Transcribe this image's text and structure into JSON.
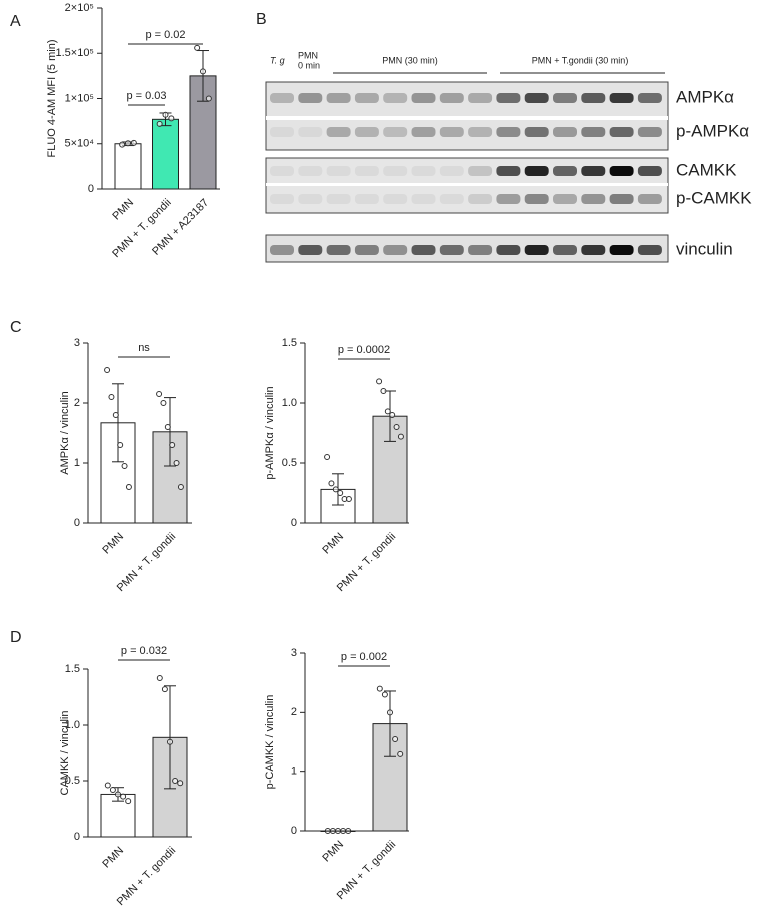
{
  "panels": [
    "A",
    "B",
    "C",
    "D"
  ],
  "blot": {
    "lane_labels": [
      "T. g",
      "PMN",
      "0 min"
    ],
    "group_labels": [
      "PMN (30 min)",
      "PMN + T.gondii (30 min)"
    ],
    "row_labels": [
      "AMPKα",
      "p-AMPKα",
      "CAMKK",
      "p-CAMKK",
      "vinculin"
    ]
  },
  "chart_data": [
    {
      "type": "bar",
      "ylabel": "FLUO 4-AM MFI (5 min)",
      "categories": [
        "PMN",
        "PMN + T. gondii",
        "PMN + A23187"
      ],
      "values": [
        50000,
        77000,
        125000
      ],
      "errors": [
        2000,
        7000,
        28000
      ],
      "points": [
        [
          49000,
          50500,
          51000
        ],
        [
          72000,
          82000,
          78000
        ],
        [
          156000,
          130000,
          100000
        ]
      ],
      "colors": [
        "#ffffff",
        "#40e8b2",
        "#9b99a1"
      ],
      "ylim": [
        0,
        200000
      ],
      "yticks": [
        0,
        {
          "value": 50000,
          "label": "5×10⁴"
        },
        {
          "value": 100000,
          "label": "1×10⁵"
        },
        {
          "value": 150000,
          "label": "1.5×10⁵"
        },
        {
          "value": 200000,
          "label": "2×10⁵"
        }
      ],
      "significance": [
        "p = 0.03",
        "p = 0.02"
      ]
    },
    {
      "type": "bar",
      "ylabel": "AMPKα / vinculin",
      "categories": [
        "PMN",
        "PMN + T. gondii"
      ],
      "values": [
        1.67,
        1.52
      ],
      "errors": [
        0.65,
        0.57
      ],
      "points": [
        [
          2.55,
          2.1,
          1.8,
          1.3,
          0.95,
          0.6
        ],
        [
          2.15,
          2.0,
          1.6,
          1.3,
          1.0,
          0.6
        ]
      ],
      "colors": [
        "#ffffff",
        "#d3d3d3"
      ],
      "ylim": [
        0,
        3
      ],
      "yticks": [
        0,
        1,
        2,
        3
      ],
      "significance": [
        "ns"
      ]
    },
    {
      "type": "bar",
      "ylabel": "p-AMPKα / vinculin",
      "categories": [
        "PMN",
        "PMN + T. gondii"
      ],
      "values": [
        0.28,
        0.89
      ],
      "errors": [
        0.13,
        0.21
      ],
      "points": [
        [
          0.55,
          0.33,
          0.28,
          0.25,
          0.2,
          0.2
        ],
        [
          1.18,
          1.1,
          0.93,
          0.9,
          0.8,
          0.72
        ]
      ],
      "colors": [
        "#ffffff",
        "#d3d3d3"
      ],
      "ylim": [
        0,
        1.5
      ],
      "yticks": [
        0,
        0.5,
        {
          "value": 1,
          "label": "1.0"
        },
        1.5
      ],
      "significance": [
        "p = 0.0002"
      ]
    },
    {
      "type": "bar",
      "ylabel": "CAMKK / vinculin",
      "categories": [
        "PMN",
        "PMN + T. gondii"
      ],
      "values": [
        0.38,
        0.89
      ],
      "errors": [
        0.06,
        0.46
      ],
      "points": [
        [
          0.46,
          0.42,
          0.38,
          0.36,
          0.32
        ],
        [
          1.42,
          1.32,
          0.85,
          0.5,
          0.48
        ]
      ],
      "colors": [
        "#ffffff",
        "#d3d3d3"
      ],
      "ylim": [
        0,
        1.5
      ],
      "yticks": [
        0,
        0.5,
        {
          "value": 1,
          "label": "1.0"
        },
        1.5
      ],
      "significance": [
        "p = 0.032"
      ]
    },
    {
      "type": "bar",
      "ylabel": "p-CAMKK / vinculin",
      "categories": [
        "PMN",
        "PMN + T. gondii"
      ],
      "values": [
        0,
        1.81
      ],
      "errors": [
        0,
        0.55
      ],
      "points": [
        [
          0,
          0,
          0,
          0,
          0
        ],
        [
          2.4,
          2.3,
          2.0,
          1.55,
          1.3
        ]
      ],
      "colors": [
        "#ffffff",
        "#d3d3d3"
      ],
      "ylim": [
        0,
        3
      ],
      "yticks": [
        0,
        1,
        2,
        3
      ],
      "significance": [
        "p = 0.002"
      ]
    }
  ]
}
